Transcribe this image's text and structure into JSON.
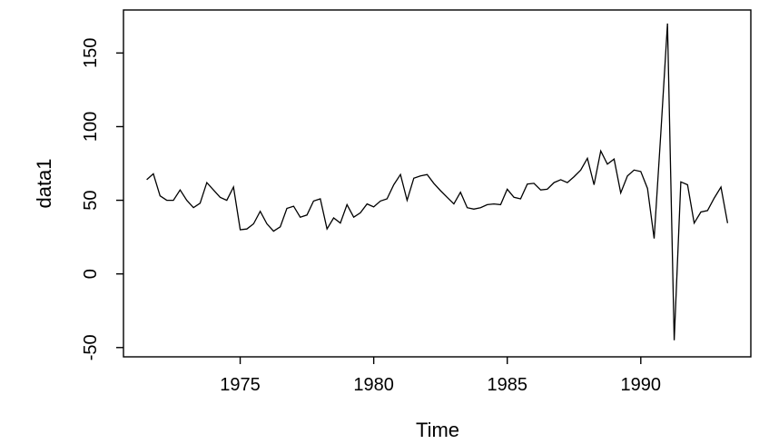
{
  "chart_data": {
    "type": "line",
    "title": "",
    "xlabel": "Time",
    "ylabel": "data1",
    "line_color": "#000000",
    "axis_color": "#000000",
    "background_color": "#ffffff",
    "grid": false,
    "legend": "none",
    "x_ticks": [
      1975,
      1980,
      1985,
      1990
    ],
    "y_ticks": [
      -50,
      0,
      50,
      100,
      150
    ],
    "x_range": [
      1970.63,
      1994.12
    ],
    "y_range": [
      -56.3,
      179.2
    ],
    "series": [
      {
        "name": "data1",
        "x_start": 1971.5,
        "x_step": 0.25,
        "values": [
          64,
          68,
          53,
          50,
          50,
          57,
          50,
          45,
          48,
          62,
          57,
          52,
          50,
          59,
          30,
          30.5,
          34,
          42.5,
          34,
          29,
          32,
          44.5,
          46,
          38.5,
          40,
          49.5,
          51,
          30.5,
          38,
          34.5,
          47,
          38.5,
          41.5,
          47.5,
          45.5,
          49.5,
          51,
          60.5,
          67.5,
          50,
          65,
          66.5,
          67.5,
          61.5,
          56.5,
          52,
          47.5,
          55.5,
          45,
          44,
          45,
          47,
          47.5,
          47,
          57.5,
          52,
          51,
          61,
          61.5,
          57,
          57.5,
          62,
          64,
          62,
          66,
          70.5,
          78.5,
          60.5,
          83.5,
          74.5,
          78,
          55,
          66.5,
          70.5,
          69.5,
          58,
          24,
          96,
          170,
          -45,
          62.5,
          60.5,
          34.5,
          42,
          43,
          51.5,
          59,
          34.5
        ]
      }
    ]
  }
}
